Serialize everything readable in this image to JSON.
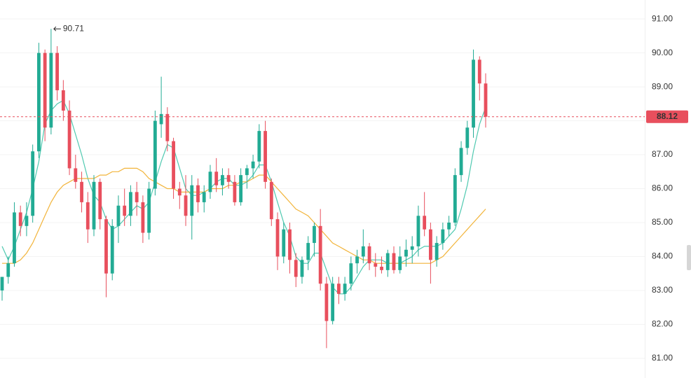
{
  "chart_data": {
    "type": "candlestick",
    "open": [
      83.0,
      83.4,
      83.8,
      85.3,
      84.9,
      85.2,
      87.1,
      90.0,
      87.8,
      90.0,
      88.9,
      88.3,
      86.6,
      86.2,
      85.6,
      84.8,
      86.2,
      85.1,
      83.5,
      84.9,
      85.5,
      85.2,
      85.9,
      85.6,
      84.7,
      86.0,
      87.9,
      88.2,
      87.4,
      86.0,
      85.8,
      85.2,
      86.1,
      85.6,
      85.9,
      86.5,
      86.1,
      86.4,
      86.2,
      85.6,
      86.4,
      86.6,
      86.8,
      87.7,
      86.2,
      85.1,
      84.0,
      84.8,
      83.9,
      83.4,
      83.9,
      84.4,
      84.9,
      83.2,
      82.1,
      83.2,
      82.9,
      83.2,
      83.8,
      84.0,
      84.3,
      83.8,
      83.7,
      83.6,
      84.1,
      83.6,
      84.0,
      84.2,
      84.3,
      85.2,
      84.8,
      83.9,
      84.4,
      84.8,
      85.0,
      86.4,
      87.2,
      87.8,
      89.8,
      89.1
    ],
    "high": [
      83.4,
      84.0,
      85.6,
      85.5,
      85.6,
      87.3,
      90.3,
      90.1,
      90.71,
      90.2,
      89.2,
      88.6,
      87.0,
      86.5,
      85.9,
      86.4,
      86.3,
      85.2,
      85.1,
      85.8,
      86.0,
      86.1,
      86.2,
      85.8,
      86.2,
      88.3,
      89.3,
      88.4,
      87.5,
      86.2,
      86.4,
      86.4,
      86.3,
      86.1,
      86.7,
      86.9,
      86.6,
      86.6,
      86.4,
      86.6,
      86.7,
      87.0,
      87.9,
      88.0,
      86.3,
      85.3,
      85.0,
      85.0,
      84.1,
      84.0,
      84.6,
      85.0,
      85.4,
      83.4,
      83.4,
      83.4,
      83.4,
      84.0,
      84.2,
      84.8,
      84.4,
      84.1,
      84.0,
      84.2,
      84.3,
      84.3,
      84.5,
      84.6,
      85.5,
      85.9,
      85.0,
      84.6,
      85.0,
      85.2,
      86.6,
      87.4,
      88.0,
      90.1,
      89.9,
      89.4
    ],
    "low": [
      82.7,
      83.2,
      83.7,
      84.6,
      84.6,
      85.0,
      86.9,
      87.4,
      87.6,
      88.6,
      88.0,
      86.4,
      86.0,
      85.3,
      84.4,
      84.6,
      84.8,
      82.8,
      83.3,
      84.4,
      84.9,
      84.9,
      85.2,
      84.4,
      84.5,
      85.8,
      87.5,
      87.1,
      85.7,
      85.4,
      84.9,
      84.5,
      85.3,
      85.3,
      85.7,
      85.9,
      85.8,
      86.0,
      85.5,
      85.5,
      86.0,
      86.3,
      86.6,
      86.0,
      84.9,
      83.6,
      83.8,
      83.5,
      83.1,
      83.2,
      83.6,
      84.0,
      83.0,
      81.3,
      82.0,
      82.6,
      82.7,
      83.0,
      83.5,
      83.8,
      83.6,
      83.4,
      83.5,
      83.4,
      83.5,
      83.5,
      83.7,
      83.8,
      84.0,
      84.6,
      83.2,
      83.7,
      84.2,
      84.6,
      84.9,
      86.2,
      87.0,
      87.5,
      88.6,
      87.8
    ],
    "close": [
      83.4,
      83.8,
      85.3,
      84.9,
      85.2,
      87.1,
      90.0,
      87.8,
      90.0,
      88.9,
      88.3,
      86.6,
      86.2,
      85.6,
      84.8,
      86.2,
      85.1,
      83.5,
      84.9,
      85.5,
      85.2,
      85.9,
      85.6,
      84.7,
      86.0,
      88.0,
      88.2,
      87.4,
      86.0,
      85.8,
      85.2,
      86.1,
      85.6,
      85.9,
      86.5,
      86.1,
      86.4,
      86.2,
      85.6,
      86.4,
      86.6,
      86.8,
      87.7,
      86.2,
      85.1,
      84.0,
      84.8,
      83.9,
      83.4,
      83.9,
      84.4,
      84.9,
      83.2,
      82.1,
      83.2,
      82.9,
      83.2,
      83.8,
      84.0,
      84.3,
      83.8,
      83.7,
      83.6,
      84.1,
      83.6,
      84.0,
      84.2,
      84.3,
      85.2,
      84.8,
      83.9,
      84.4,
      84.8,
      85.0,
      86.4,
      87.2,
      87.8,
      89.8,
      89.1,
      88.12
    ],
    "up_color": "#22ab94",
    "down_color": "#e84f5d",
    "lines": [
      {
        "color": "#4fc9b0",
        "values": [
          84.3,
          83.9,
          84.3,
          84.8,
          85.3,
          86.0,
          86.8,
          87.9,
          88.3,
          88.5,
          88.6,
          88.2,
          87.6,
          87.0,
          86.3,
          85.8,
          85.6,
          85.1,
          84.8,
          84.9,
          85.1,
          85.3,
          85.5,
          85.4,
          85.6,
          86.2,
          86.8,
          87.3,
          87.2,
          86.6,
          86.0,
          85.8,
          85.8,
          85.9,
          86.0,
          86.2,
          86.3,
          86.3,
          86.1,
          86.1,
          86.2,
          86.4,
          86.7,
          86.7,
          86.2,
          85.6,
          85.0,
          84.6,
          84.0,
          83.8,
          83.8,
          84.1,
          84.1,
          83.6,
          83.1,
          82.9,
          82.9,
          83.1,
          83.4,
          83.7,
          83.9,
          83.9,
          83.9,
          83.8,
          83.8,
          83.8,
          83.9,
          84.0,
          84.2,
          84.3,
          84.3,
          84.3,
          84.4,
          84.6,
          84.8,
          85.4,
          86.1,
          87.1,
          87.9,
          88.4
        ]
      },
      {
        "color": "#f2b43a",
        "values": [
          83.8,
          83.8,
          83.8,
          83.9,
          84.1,
          84.4,
          84.8,
          85.2,
          85.6,
          85.9,
          86.1,
          86.2,
          86.3,
          86.3,
          86.3,
          86.3,
          86.4,
          86.4,
          86.5,
          86.5,
          86.6,
          86.6,
          86.6,
          86.5,
          86.3,
          86.2,
          86.1,
          86.0,
          86.0,
          85.9,
          85.9,
          85.9,
          85.9,
          85.9,
          86.0,
          86.0,
          86.0,
          86.1,
          86.1,
          86.2,
          86.2,
          86.3,
          86.4,
          86.4,
          86.2,
          86.0,
          85.8,
          85.6,
          85.4,
          85.3,
          85.2,
          85.0,
          84.8,
          84.6,
          84.4,
          84.3,
          84.2,
          84.1,
          84.0,
          83.9,
          83.9,
          83.8,
          83.8,
          83.8,
          83.8,
          83.8,
          83.8,
          83.8,
          83.8,
          83.8,
          83.8,
          83.9,
          84.0,
          84.2,
          84.4,
          84.6,
          84.8,
          85.0,
          85.2,
          85.4
        ]
      }
    ],
    "ylim": [
      80.42,
      91.56
    ],
    "yticks": [
      {
        "value": 81,
        "label": "81.00"
      },
      {
        "value": 82,
        "label": "82.00"
      },
      {
        "value": 83,
        "label": "83.00"
      },
      {
        "value": 84,
        "label": "84.00"
      },
      {
        "value": 85,
        "label": "85.00"
      },
      {
        "value": 86,
        "label": "86.00"
      },
      {
        "value": 87,
        "label": "87.00"
      },
      {
        "value": 88,
        "label": "88.00"
      },
      {
        "value": 89,
        "label": "89.00"
      },
      {
        "value": 90,
        "label": "90.00"
      },
      {
        "value": 91,
        "label": "91.00"
      }
    ],
    "grid": true,
    "last_price_color": "#e84f5d"
  }
}
